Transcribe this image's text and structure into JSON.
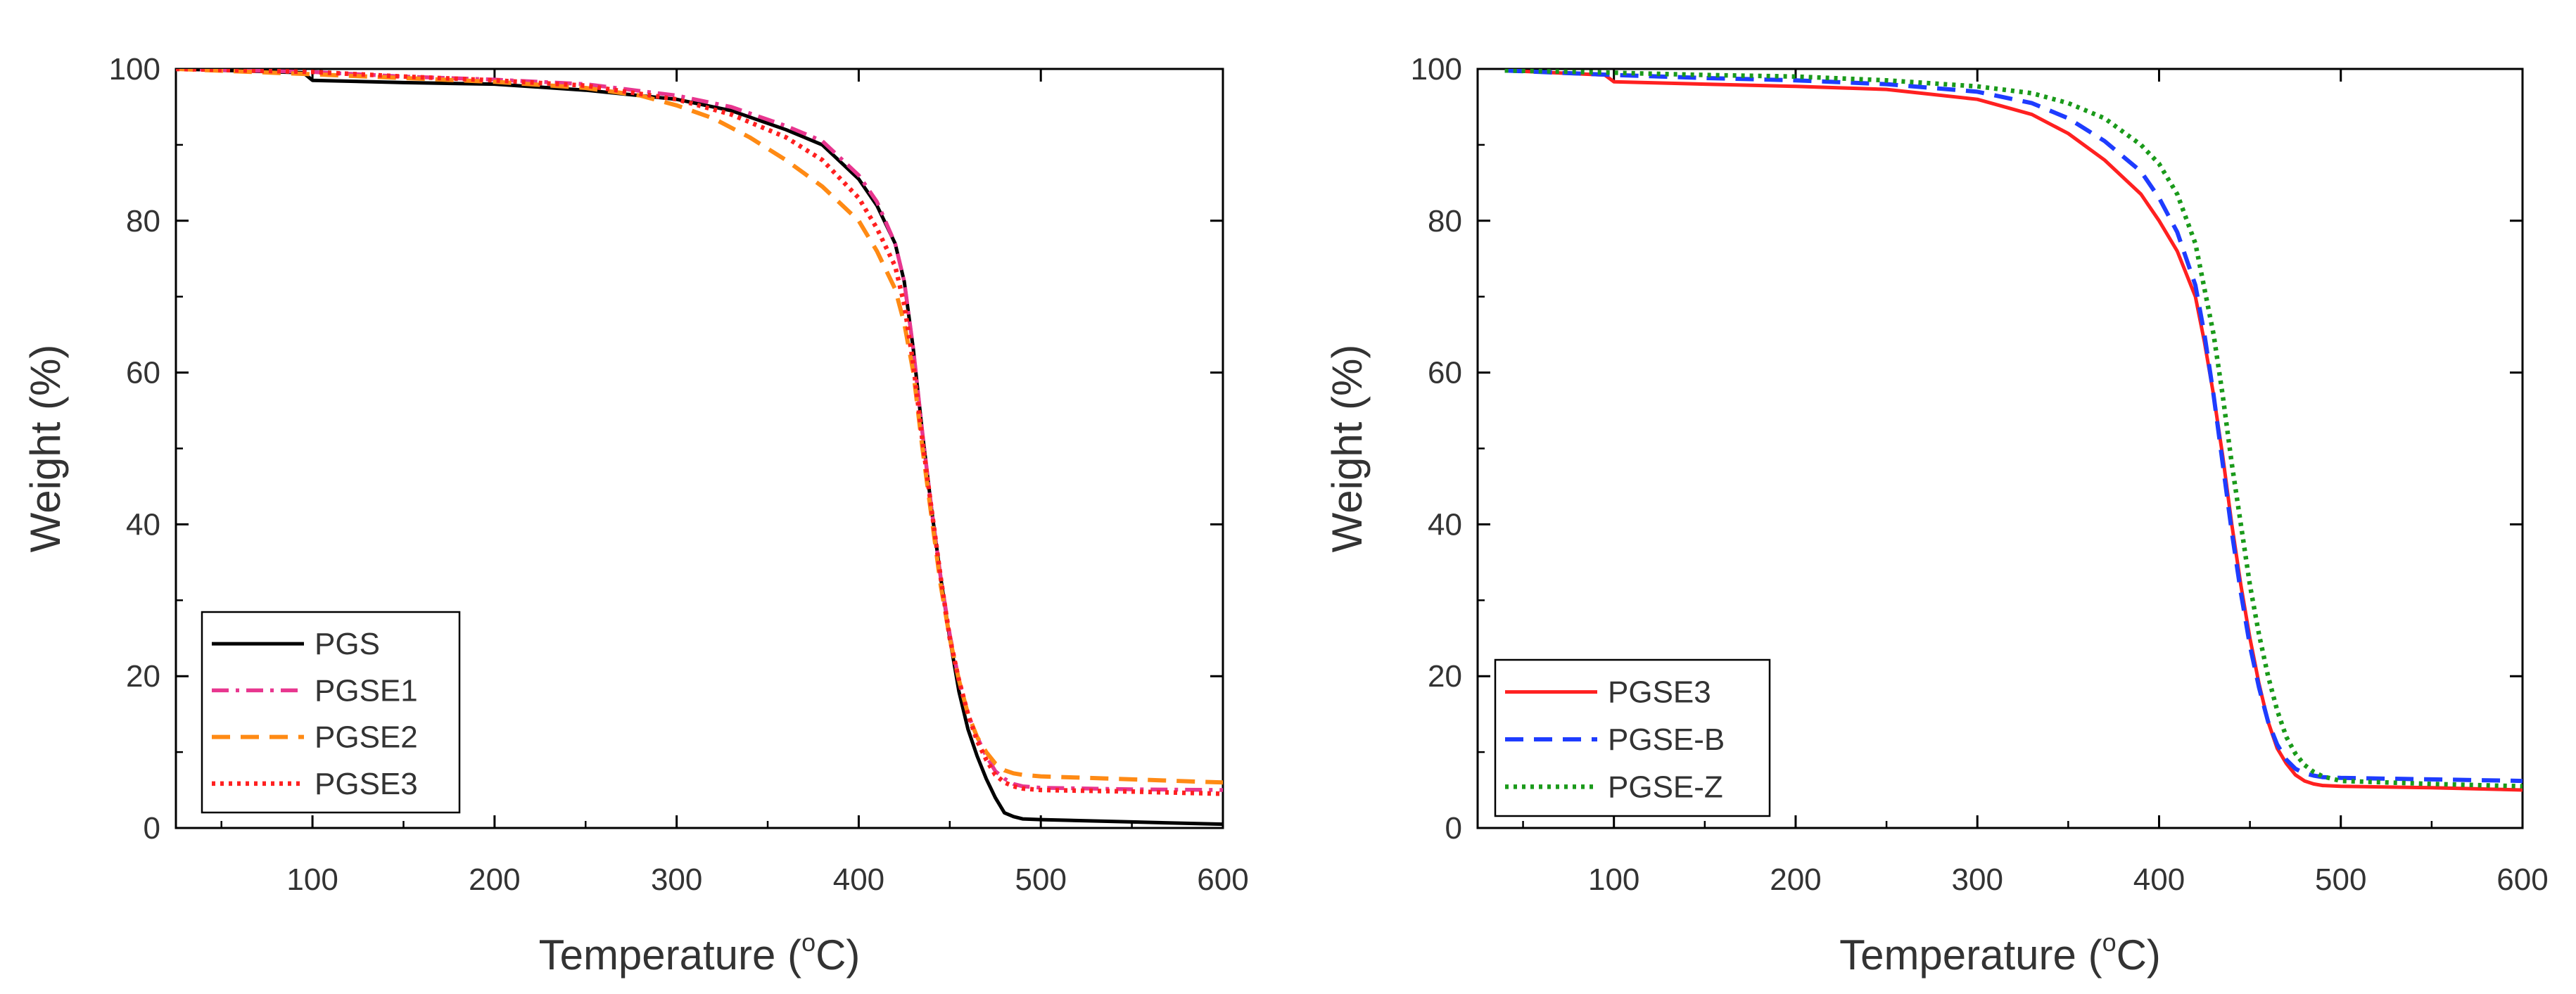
{
  "chart_data": [
    {
      "type": "line",
      "title": "",
      "xlabel": "Temperature (°C)",
      "xlabel_main": "Temperature (",
      "xlabel_sup": "o",
      "xlabel_end": "C)",
      "ylabel": "Weight (%)",
      "xlim": [
        25,
        600
      ],
      "ylim": [
        0,
        100
      ],
      "xticks": [
        100,
        200,
        300,
        400,
        500,
        600
      ],
      "yticks": [
        0,
        20,
        40,
        60,
        80,
        100
      ],
      "grid": false,
      "legend_position": "bottom-left",
      "series": [
        {
          "name": "PGS",
          "color": "#000000",
          "dash": "solid",
          "x": [
            25,
            95,
            100,
            150,
            200,
            250,
            300,
            330,
            360,
            380,
            400,
            410,
            420,
            425,
            430,
            435,
            440,
            445,
            450,
            455,
            460,
            465,
            470,
            475,
            480,
            485,
            490,
            500,
            550,
            600
          ],
          "values": [
            100,
            99.5,
            98.5,
            98.2,
            98,
            97.2,
            96,
            94.5,
            92,
            90,
            85.5,
            82,
            77,
            72,
            63,
            52,
            42,
            33,
            25,
            18,
            13,
            9.5,
            6.5,
            4,
            2,
            1.5,
            1.2,
            1.1,
            0.8,
            0.5
          ]
        },
        {
          "name": "PGSE1",
          "color": "#e8368f",
          "dash": "dashdot",
          "x": [
            25,
            100,
            150,
            200,
            250,
            300,
            330,
            360,
            380,
            400,
            410,
            420,
            425,
            430,
            435,
            440,
            445,
            450,
            455,
            460,
            465,
            470,
            475,
            480,
            485,
            490,
            500,
            550,
            600
          ],
          "values": [
            100,
            99.6,
            99,
            98.6,
            98,
            96.5,
            95,
            92.5,
            90.5,
            86,
            82.5,
            77,
            72,
            63,
            52,
            42,
            33,
            25.5,
            19.5,
            15,
            12,
            9.5,
            7.5,
            6.5,
            5.8,
            5.5,
            5.3,
            5.1,
            5
          ]
        },
        {
          "name": "PGSE2",
          "color": "#ff8a14",
          "dash": "dashed",
          "x": [
            25,
            100,
            150,
            200,
            250,
            280,
            300,
            320,
            340,
            360,
            380,
            400,
            410,
            420,
            425,
            430,
            435,
            440,
            445,
            450,
            455,
            460,
            465,
            470,
            475,
            480,
            485,
            490,
            500,
            550,
            600
          ],
          "values": [
            100,
            99.3,
            98.8,
            98.3,
            97.5,
            96.5,
            95.2,
            93.5,
            91,
            88,
            84.5,
            80,
            76,
            71,
            66.5,
            60,
            50,
            41,
            32,
            25,
            19.5,
            15,
            12,
            10,
            8.5,
            7.6,
            7.2,
            7,
            6.8,
            6.4,
            6
          ]
        },
        {
          "name": "PGSE3",
          "color": "#ff2020",
          "dash": "dotted",
          "x": [
            25,
            100,
            150,
            200,
            250,
            300,
            330,
            360,
            380,
            400,
            410,
            420,
            425,
            430,
            435,
            440,
            445,
            450,
            455,
            460,
            465,
            470,
            475,
            480,
            485,
            490,
            500,
            550,
            600
          ],
          "values": [
            100,
            99.6,
            99,
            98.5,
            97.8,
            96,
            94,
            91,
            88,
            83,
            79,
            74,
            69,
            61,
            51,
            42,
            33,
            25,
            19.5,
            15,
            11.5,
            9,
            7,
            6,
            5.5,
            5.2,
            5,
            4.8,
            4.5
          ]
        }
      ]
    },
    {
      "type": "line",
      "title": "",
      "xlabel": "Temperature (°C)",
      "xlabel_main": "Temperature (",
      "xlabel_sup": "o",
      "xlabel_end": "C)",
      "ylabel": "Weight (%)",
      "xlim": [
        25,
        600
      ],
      "ylim": [
        0,
        100
      ],
      "xticks": [
        100,
        200,
        300,
        400,
        500,
        600
      ],
      "yticks": [
        0,
        20,
        40,
        60,
        80,
        100
      ],
      "grid": false,
      "legend_position": "bottom-left",
      "series": [
        {
          "name": "PGSE3",
          "color": "#ff2020",
          "dash": "solid",
          "x": [
            40,
            95,
            100,
            150,
            200,
            250,
            300,
            330,
            350,
            370,
            390,
            400,
            410,
            420,
            425,
            430,
            435,
            440,
            445,
            450,
            455,
            460,
            465,
            470,
            475,
            480,
            485,
            490,
            500,
            550,
            600
          ],
          "values": [
            99.8,
            99.2,
            98.3,
            98,
            97.7,
            97.3,
            96,
            94,
            91.5,
            88,
            83.5,
            80,
            76,
            70,
            64,
            57,
            49,
            40,
            32,
            25,
            19,
            14,
            10.5,
            8.5,
            7,
            6.2,
            5.8,
            5.6,
            5.5,
            5.3,
            5
          ]
        },
        {
          "name": "PGSE-B",
          "color": "#1e3cff",
          "dash": "dashed",
          "x": [
            40,
            100,
            150,
            200,
            250,
            300,
            330,
            350,
            370,
            390,
            400,
            410,
            420,
            425,
            430,
            435,
            440,
            445,
            450,
            455,
            460,
            465,
            470,
            475,
            480,
            485,
            490,
            500,
            550,
            600
          ],
          "values": [
            99.8,
            99.2,
            98.8,
            98.5,
            98,
            97,
            95.5,
            93.5,
            90.5,
            86.5,
            83,
            78.5,
            71.5,
            65,
            57,
            48,
            39,
            31,
            24,
            18.5,
            14,
            11,
            9,
            7.8,
            7.2,
            6.9,
            6.7,
            6.6,
            6.4,
            6.2
          ]
        },
        {
          "name": "PGSE-Z",
          "color": "#1a9a1a",
          "dash": "dotted",
          "x": [
            40,
            100,
            150,
            200,
            250,
            300,
            330,
            350,
            370,
            390,
            400,
            410,
            420,
            430,
            435,
            440,
            445,
            450,
            455,
            460,
            465,
            470,
            475,
            480,
            485,
            490,
            500,
            550,
            600
          ],
          "values": [
            99.8,
            99.5,
            99.2,
            99,
            98.5,
            97.7,
            96.8,
            95.5,
            93.5,
            90,
            87.5,
            83.5,
            77,
            65,
            57,
            48,
            40,
            32,
            25.5,
            20,
            15.5,
            12,
            9.8,
            8.3,
            7.4,
            6.8,
            6.2,
            5.8,
            5.5
          ]
        }
      ]
    }
  ]
}
